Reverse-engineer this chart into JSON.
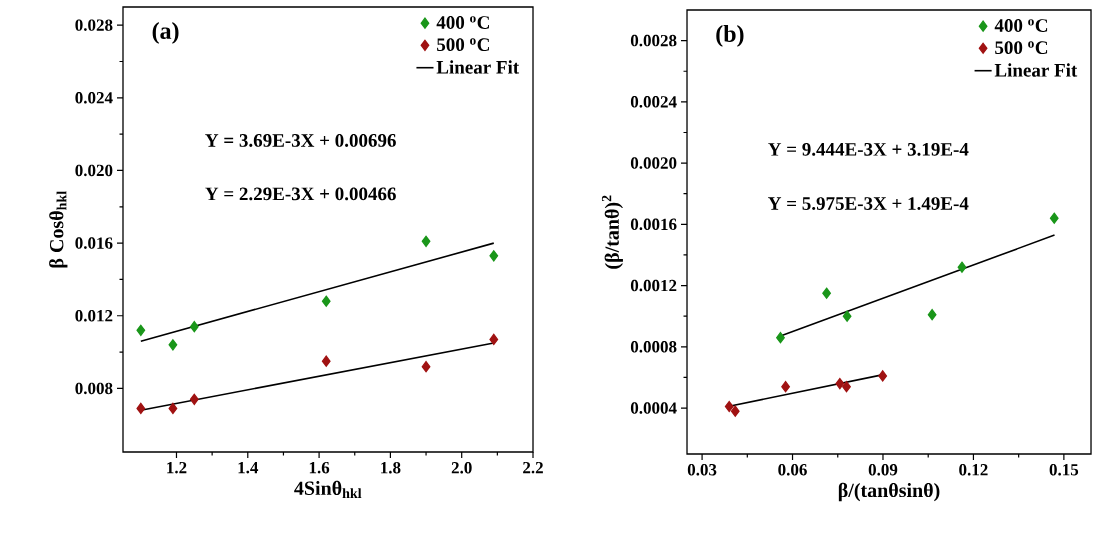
{
  "chart_data": [
    {
      "type": "scatter",
      "title": "(a)",
      "xlabel": "4Sinθ$_{hkl}$",
      "ylabel": "β Cosθ$_{hkl}$",
      "xlim": [
        1.05,
        2.2
      ],
      "ylim": [
        0.0045,
        0.029
      ],
      "xticks": [
        1.2,
        1.4,
        1.6,
        1.8,
        {
          "value": 2,
          "label": "2.0"
        },
        2.2
      ],
      "yticks": [
        0.008,
        0.012,
        0.016,
        {
          "value": 0.02,
          "label": "0.020"
        },
        0.024,
        0.028
      ],
      "legend": "top right",
      "marker": "diamond",
      "annotations": [
        "Y = 3.69E-3X + 0.00696",
        "Y = 2.29E-3X + 0.00466"
      ],
      "series": [
        {
          "name": "400 $^{o}$C",
          "color": "#1a961a",
          "x": [
            1.1,
            1.19,
            1.25,
            1.62,
            1.9,
            2.09
          ],
          "values": [
            0.0112,
            0.0104,
            0.0114,
            0.0128,
            0.0161,
            0.0153
          ]
        },
        {
          "name": "500 $^{o}$C",
          "color": "#a01212",
          "x": [
            1.1,
            1.19,
            1.25,
            1.62,
            1.9,
            2.09
          ],
          "values": [
            0.0069,
            0.0069,
            0.0074,
            0.0095,
            0.0092,
            0.0107
          ]
        },
        {
          "name": "Linear Fit",
          "type": "line",
          "marker": "none",
          "color": "#000000",
          "x": [
            1.1,
            2.09
          ],
          "values": [
            0.0106,
            0.016
          ]
        },
        {
          "type": "line",
          "marker": "none",
          "color": "#000000",
          "x": [
            1.1,
            2.09
          ],
          "values": [
            0.0068,
            0.0105
          ]
        }
      ]
    },
    {
      "type": "scatter",
      "title": "(b)",
      "xlabel": "β/(tanθsinθ)",
      "ylabel": "(β/tanθ)$^{2}$",
      "xlim": [
        0.025,
        0.159
      ],
      "ylim": [
        0.0001,
        0.003
      ],
      "xticks": [
        0.03,
        0.06,
        0.09,
        0.12,
        0.15
      ],
      "yticks": [
        0.0004,
        0.0008,
        0.0012,
        0.0016,
        {
          "value": 0.002,
          "label": "0.0020"
        },
        0.0024,
        0.0028
      ],
      "legend": "top right",
      "marker": "diamond",
      "annotations": [
        "Y = 9.444E-3X + 3.19E-4",
        "Y = 5.975E-3X + 1.49E-4"
      ],
      "series": [
        {
          "name": "400 $^{o}$C",
          "color": "#1a961a",
          "x": [
            0.056,
            0.0713,
            0.0781,
            0.1063,
            0.1162,
            0.1468
          ],
          "values": [
            0.00086,
            0.00115,
            0.001,
            0.00101,
            0.00132,
            0.00164
          ]
        },
        {
          "name": "500 $^{o}$C",
          "color": "#a01212",
          "x": [
            0.039,
            0.041,
            0.0577,
            0.0757,
            0.0779,
            0.0899
          ],
          "values": [
            0.00041,
            0.00038,
            0.00054,
            0.00056,
            0.00054,
            0.00061
          ]
        },
        {
          "name": "Linear Fit",
          "type": "line",
          "marker": "none",
          "color": "#000000",
          "x": [
            0.056,
            0.1469
          ],
          "values": [
            0.00087,
            0.00153
          ]
        },
        {
          "type": "line",
          "marker": "none",
          "color": "#000000",
          "x": [
            0.0386,
            0.0905
          ],
          "values": [
            0.00041,
            0.00062
          ]
        }
      ]
    }
  ]
}
